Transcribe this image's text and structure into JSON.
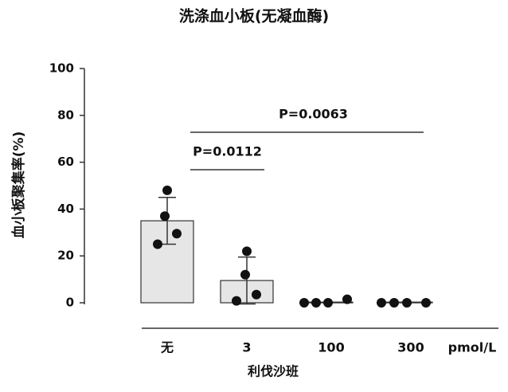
{
  "chart_data": {
    "type": "bar",
    "title": "洗涤血小板(无凝血酶)",
    "xlabel": "利伐沙班",
    "ylabel": "血小板聚集率(%)",
    "unit": "pmol/L",
    "categories": [
      "无",
      "3",
      "100",
      "300"
    ],
    "values": [
      35,
      9.5,
      0.3,
      0.3
    ],
    "errors": [
      10,
      10,
      0,
      0
    ],
    "points": [
      [
        48,
        37,
        29.5,
        25
      ],
      [
        22,
        12,
        3.5,
        0.8
      ],
      [
        0,
        0,
        0,
        1.5
      ],
      [
        0,
        0,
        0,
        0
      ]
    ],
    "color": "#e6e6e6",
    "ylim": [
      0,
      100
    ],
    "yticks": [
      0,
      20,
      40,
      60,
      80,
      100
    ],
    "annotations": [
      {
        "text": "P=0.0112",
        "from": 0,
        "to": 1
      },
      {
        "text": "P=0.0063",
        "from": 0,
        "to": 3
      }
    ]
  }
}
